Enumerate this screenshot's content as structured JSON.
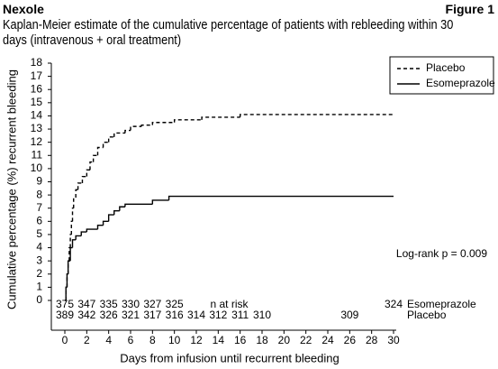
{
  "brand": "Nexole",
  "figure": "Figure 1",
  "chart_data": {
    "type": "line",
    "step": "post",
    "title": "Kaplan-Meier estimate of the cumulative percentage of patients with rebleeding within 30 days (intravenous + oral treatment)",
    "x_label": "Days from infusion until recurrent bleeding",
    "y_label": "Cumulative percentage (%) recurrent bleeding",
    "annotation": "Log-rank p = 0.009",
    "xlim": [
      0,
      30
    ],
    "xticks": [
      0,
      2,
      4,
      6,
      8,
      10,
      12,
      14,
      16,
      18,
      20,
      22,
      24,
      26,
      28,
      30
    ],
    "ylim": [
      0,
      18
    ],
    "yticks": [
      0,
      1,
      2,
      3,
      4,
      5,
      6,
      7,
      8,
      9,
      10,
      11,
      12,
      13,
      14,
      15,
      16,
      17,
      18
    ],
    "legend": "top-right",
    "series": [
      {
        "name": "Placebo",
        "color": "#000000",
        "style": "dashed",
        "x": [
          0,
          0.1,
          0.2,
          0.3,
          0.4,
          0.5,
          0.6,
          0.7,
          0.8,
          1.0,
          1.2,
          1.6,
          2.0,
          2.3,
          2.6,
          3.0,
          3.5,
          4.0,
          4.5,
          5.5,
          6.0,
          7.0,
          8.0,
          10.0,
          12.5,
          16.0,
          30
        ],
        "values": [
          0,
          1,
          2,
          3,
          4,
          5,
          6,
          7,
          7.8,
          8.4,
          8.9,
          9.4,
          9.9,
          10.5,
          11,
          11.6,
          12.0,
          12.4,
          12.7,
          12.9,
          13.2,
          13.3,
          13.5,
          13.7,
          13.9,
          14.1,
          14.1
        ]
      },
      {
        "name": "Esomeprazole",
        "color": "#000000",
        "style": "solid",
        "x": [
          0,
          0.1,
          0.2,
          0.3,
          0.5,
          0.7,
          1.0,
          1.5,
          2.0,
          3.0,
          3.5,
          4.0,
          4.5,
          5.0,
          5.5,
          8.0,
          9.5,
          30
        ],
        "values": [
          0,
          1,
          2,
          3,
          4,
          4.6,
          4.9,
          5.2,
          5.4,
          5.7,
          6.0,
          6.5,
          6.8,
          7.1,
          7.3,
          7.6,
          7.9,
          7.9
        ]
      }
    ],
    "at_risk": {
      "label": "n at risk",
      "label_x": 15,
      "rows": [
        {
          "name": "Esomeprazole",
          "x": [
            0,
            2,
            4,
            6,
            8,
            10,
            30
          ],
          "values": [
            375,
            347,
            335,
            330,
            327,
            325,
            324
          ]
        },
        {
          "name": "Placebo",
          "x": [
            0,
            2,
            4,
            6,
            8,
            10,
            12,
            14,
            16,
            18,
            26
          ],
          "values": [
            389,
            342,
            326,
            321,
            317,
            316,
            314,
            312,
            311,
            310,
            309
          ]
        }
      ]
    }
  }
}
